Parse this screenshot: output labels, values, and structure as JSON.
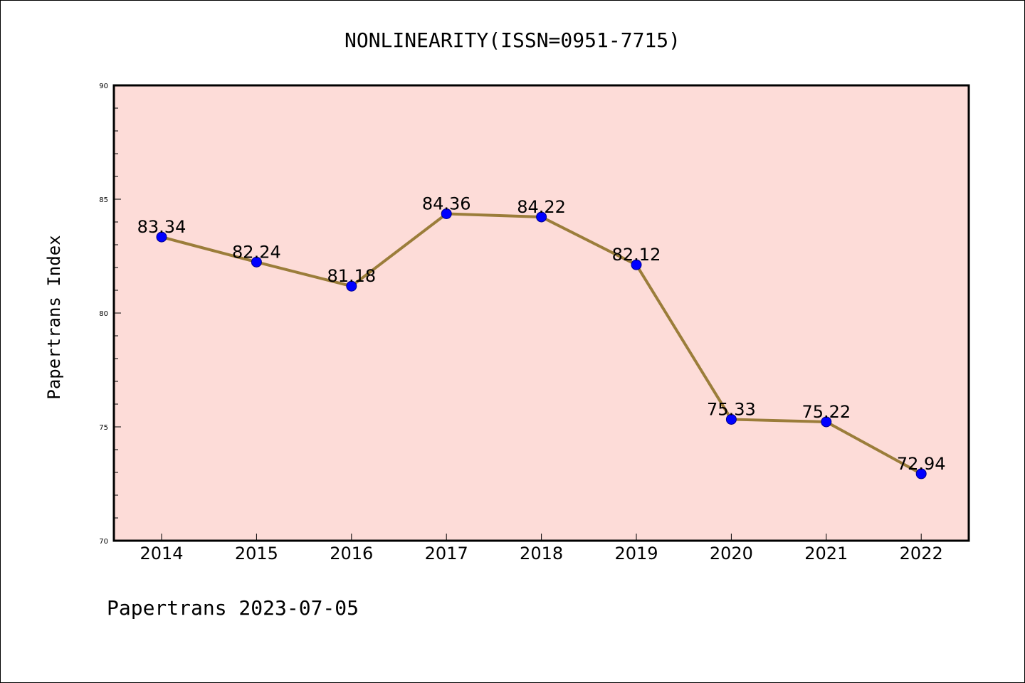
{
  "chart_data": {
    "type": "line",
    "title": "NONLINEARITY(ISSN=0951-7715)",
    "xlabel": "",
    "ylabel": "Papertrans Index",
    "categories": [
      "2014",
      "2015",
      "2016",
      "2017",
      "2018",
      "2019",
      "2020",
      "2021",
      "2022"
    ],
    "series": [
      {
        "values": [
          83.34,
          82.24,
          81.18,
          84.36,
          84.22,
          82.12,
          75.33,
          75.22,
          72.94
        ],
        "labels": [
          "83.34",
          "82.24",
          "81.18",
          "84.36",
          "84.22",
          "82.12",
          "75.33",
          "75.22",
          "72.94"
        ]
      }
    ],
    "ylim": [
      70,
      90
    ],
    "yticks": [
      "70",
      "75",
      "80",
      "85",
      "90"
    ],
    "grid": false,
    "legend": "none",
    "colors": {
      "plot_background": "#fddcd8",
      "line": "#9b7d3a",
      "marker": "#0000ff",
      "marker_edge": "#00008b"
    }
  },
  "footer": {
    "text": "Papertrans 2023-07-05"
  }
}
